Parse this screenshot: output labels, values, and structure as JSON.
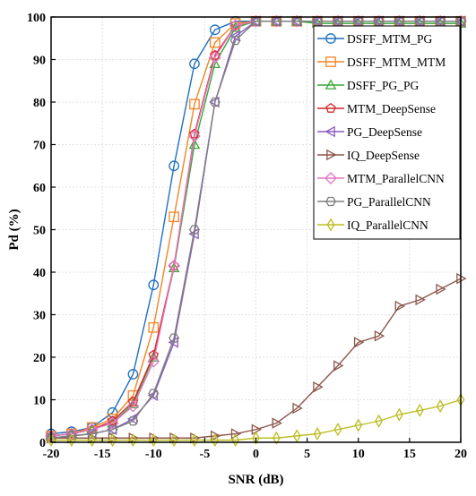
{
  "chart_data": {
    "type": "line",
    "title": "",
    "xlabel": "SNR (dB)",
    "ylabel": "Pd  (%)",
    "xlim": [
      -20,
      20
    ],
    "ylim": [
      0,
      100
    ],
    "xticks": [
      -20,
      -15,
      -10,
      -5,
      0,
      5,
      10,
      15,
      20
    ],
    "yticks": [
      0,
      10,
      20,
      30,
      40,
      50,
      60,
      70,
      80,
      90,
      100
    ],
    "grid": true,
    "legend_position": "top-right",
    "x": [
      -20,
      -18,
      -16,
      -14,
      -12,
      -10,
      -8,
      -6,
      -4,
      -2,
      0,
      2,
      4,
      6,
      8,
      10,
      12,
      14,
      16,
      18,
      20
    ],
    "series": [
      {
        "name": "DSFF_MTM_PG",
        "color": "#1f6fbf",
        "marker": "circle",
        "values": [
          2.0,
          2.5,
          3.5,
          7.0,
          16.0,
          37.0,
          65.0,
          89.0,
          97.0,
          99.0,
          99.0,
          99.0,
          99.0,
          99.0,
          99.0,
          99.0,
          99.0,
          99.0,
          99.0,
          99.0,
          99.0
        ]
      },
      {
        "name": "DSFF_MTM_MTM",
        "color": "#f28522",
        "marker": "square",
        "values": [
          1.5,
          2.0,
          3.5,
          5.5,
          11.0,
          27.0,
          53.0,
          79.5,
          94.0,
          98.5,
          99.0,
          99.0,
          99.0,
          99.0,
          99.0,
          99.0,
          99.0,
          99.0,
          99.0,
          99.0,
          99.0
        ]
      },
      {
        "name": "DSFF_PG_PG",
        "color": "#3aa639",
        "marker": "triangle-up",
        "values": [
          1.5,
          2.0,
          3.0,
          4.5,
          9.0,
          20.0,
          41.0,
          70.0,
          89.0,
          97.5,
          99.0,
          99.0,
          99.0,
          98.5,
          98.5,
          98.5,
          98.5,
          98.5,
          98.5,
          98.5,
          98.5
        ]
      },
      {
        "name": "MTM_DeepSense",
        "color": "#d62728",
        "marker": "pentagon",
        "values": [
          1.5,
          2.0,
          3.0,
          5.0,
          9.5,
          20.5,
          41.5,
          72.5,
          91.0,
          98.0,
          99.0,
          99.0,
          99.0,
          99.0,
          99.0,
          99.0,
          99.0,
          99.0,
          99.0,
          99.0,
          99.0
        ]
      },
      {
        "name": "PG_DeepSense",
        "color": "#8a5cc2",
        "marker": "triangle-left",
        "values": [
          1.0,
          1.5,
          2.0,
          3.0,
          5.5,
          11.0,
          23.5,
          49.0,
          80.0,
          95.5,
          99.0,
          99.0,
          99.0,
          99.0,
          99.0,
          99.0,
          99.0,
          99.0,
          99.0,
          99.0,
          99.0
        ]
      },
      {
        "name": "IQ_DeepSense",
        "color": "#8c564b",
        "marker": "triangle-right",
        "values": [
          1.0,
          1.0,
          1.0,
          1.0,
          1.0,
          1.0,
          1.0,
          1.0,
          1.5,
          2.0,
          3.0,
          4.5,
          8.0,
          13.0,
          18.0,
          23.5,
          25.0,
          32.0,
          33.5,
          36.0,
          38.5
        ]
      },
      {
        "name": "MTM_ParallelCNN",
        "color": "#e377c2",
        "marker": "diamond",
        "values": [
          1.5,
          2.0,
          3.0,
          4.5,
          8.5,
          19.0,
          41.5,
          72.0,
          90.5,
          98.0,
          99.0,
          99.0,
          99.0,
          99.0,
          99.0,
          99.0,
          99.0,
          99.0,
          99.0,
          99.0,
          99.0
        ]
      },
      {
        "name": "PG_ParallelCNN",
        "color": "#7f7f7f",
        "marker": "hexagon",
        "values": [
          1.0,
          1.5,
          2.0,
          3.0,
          5.0,
          11.5,
          24.5,
          50.0,
          80.0,
          94.5,
          99.0,
          99.0,
          99.0,
          99.0,
          99.0,
          99.0,
          99.0,
          99.0,
          99.0,
          99.0,
          99.0
        ]
      },
      {
        "name": "IQ_ParallelCNN",
        "color": "#bcbd22",
        "marker": "diamond-thin",
        "values": [
          0.5,
          0.5,
          0.5,
          0.5,
          0.5,
          0.5,
          0.5,
          0.5,
          0.5,
          0.5,
          1.0,
          1.0,
          1.5,
          2.0,
          3.0,
          4.0,
          5.0,
          6.5,
          7.5,
          8.5,
          10.0
        ]
      }
    ]
  }
}
